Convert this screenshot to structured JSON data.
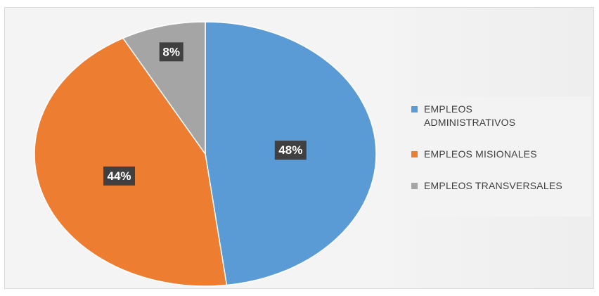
{
  "chart_data": {
    "type": "pie",
    "title": "",
    "categories": [
      "EMPLEOS ADMINISTRATIVOS",
      "EMPLEOS MISIONALES",
      "EMPLEOS TRANSVERSALES"
    ],
    "values": [
      48,
      44,
      8
    ],
    "data_labels": [
      "48%",
      "44%",
      "8%"
    ],
    "colors": [
      "#5b9bd5",
      "#ed7d31",
      "#a5a5a5"
    ],
    "start_angle_deg": 0,
    "direction": "clockwise",
    "legend_position": "right"
  }
}
